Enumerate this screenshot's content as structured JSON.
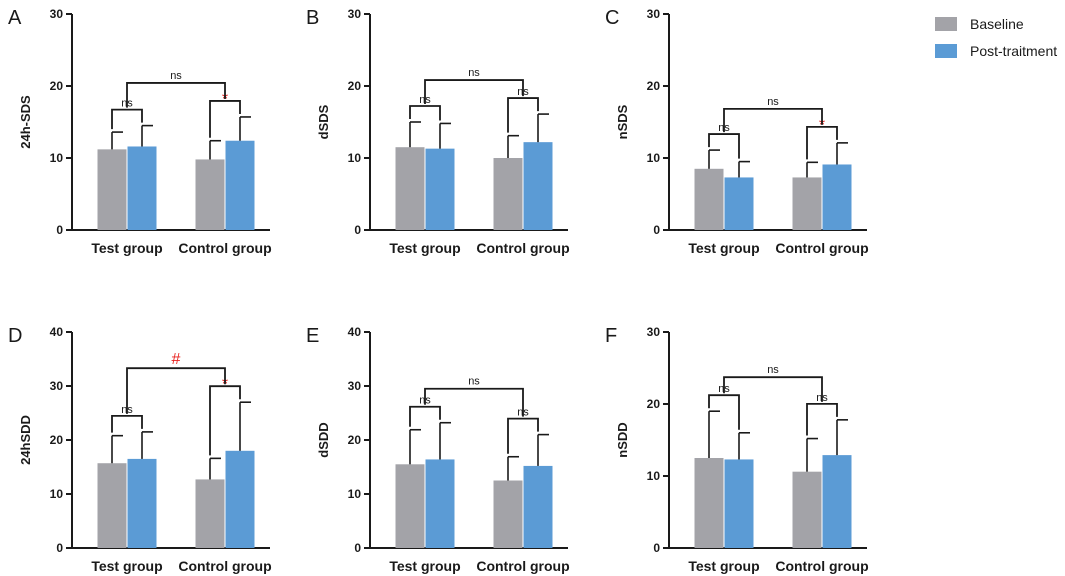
{
  "legend": {
    "items": [
      {
        "label": "Baseline",
        "color": "#a3a3a8"
      },
      {
        "label": "Post-traitment",
        "color": "#5b9bd5"
      }
    ]
  },
  "chart_data": [
    {
      "type": "bar",
      "panel": "A",
      "ylabel": "24h-SDS",
      "ylim": [
        0,
        30
      ],
      "yticks": [
        0,
        10,
        20,
        30
      ],
      "categories": [
        "Test group",
        "Control group"
      ],
      "series": [
        {
          "name": "Baseline",
          "values": [
            11.2,
            9.8
          ],
          "errors": [
            2.4,
            2.6
          ]
        },
        {
          "name": "Post-traitment",
          "values": [
            11.6,
            12.4
          ],
          "errors": [
            2.9,
            3.3
          ]
        }
      ],
      "brackets": [
        {
          "from": [
            0,
            0
          ],
          "to": [
            0,
            1
          ],
          "label": "ns",
          "color": "black",
          "level": 1
        },
        {
          "from": [
            1,
            0
          ],
          "to": [
            1,
            1
          ],
          "label": "*",
          "color": "red",
          "level": 1
        },
        {
          "from": [
            0,
            1
          ],
          "to": [
            1,
            0
          ],
          "label": "ns",
          "color": "black",
          "level": 2
        }
      ]
    },
    {
      "type": "bar",
      "panel": "B",
      "ylabel": "dSDS",
      "ylim": [
        0,
        30
      ],
      "yticks": [
        0,
        10,
        20,
        30
      ],
      "categories": [
        "Test group",
        "Control group"
      ],
      "series": [
        {
          "name": "Baseline",
          "values": [
            11.5,
            10.0
          ],
          "errors": [
            3.5,
            3.1
          ]
        },
        {
          "name": "Post-traitment",
          "values": [
            11.3,
            12.2
          ],
          "errors": [
            3.5,
            3.9
          ]
        }
      ],
      "brackets": [
        {
          "from": [
            0,
            0
          ],
          "to": [
            0,
            1
          ],
          "label": "ns",
          "color": "black",
          "level": 1
        },
        {
          "from": [
            1,
            0
          ],
          "to": [
            1,
            1
          ],
          "label": "ns",
          "color": "black",
          "level": 1
        },
        {
          "from": [
            0,
            1
          ],
          "to": [
            1,
            0
          ],
          "label": "ns",
          "color": "black",
          "level": 2
        }
      ]
    },
    {
      "type": "bar",
      "panel": "C",
      "ylabel": "nSDS",
      "ylim": [
        0,
        30
      ],
      "yticks": [
        0,
        10,
        20,
        30
      ],
      "categories": [
        "Test group",
        "Control group"
      ],
      "series": [
        {
          "name": "Baseline",
          "values": [
            8.5,
            7.3
          ],
          "errors": [
            2.6,
            2.1
          ]
        },
        {
          "name": "Post-traitment",
          "values": [
            7.3,
            9.1
          ],
          "errors": [
            2.2,
            3.0
          ]
        }
      ],
      "brackets": [
        {
          "from": [
            0,
            0
          ],
          "to": [
            0,
            1
          ],
          "label": "ns",
          "color": "black",
          "level": 1
        },
        {
          "from": [
            1,
            0
          ],
          "to": [
            1,
            1
          ],
          "label": "*",
          "color": "red",
          "level": 1
        },
        {
          "from": [
            0,
            1
          ],
          "to": [
            1,
            0
          ],
          "label": "ns",
          "color": "black",
          "level": 2
        }
      ]
    },
    {
      "type": "bar",
      "panel": "D",
      "ylabel": "24hSDD",
      "ylim": [
        0,
        40
      ],
      "yticks": [
        0,
        10,
        20,
        30,
        40
      ],
      "categories": [
        "Test group",
        "Control group"
      ],
      "series": [
        {
          "name": "Baseline",
          "values": [
            15.7,
            12.7
          ],
          "errors": [
            5.1,
            3.9
          ]
        },
        {
          "name": "Post-traitment",
          "values": [
            16.5,
            18.0
          ],
          "errors": [
            5.0,
            9.0
          ]
        }
      ],
      "brackets": [
        {
          "from": [
            0,
            0
          ],
          "to": [
            0,
            1
          ],
          "label": "ns",
          "color": "black",
          "level": 1
        },
        {
          "from": [
            1,
            0
          ],
          "to": [
            1,
            1
          ],
          "label": "*",
          "color": "red",
          "level": 1
        },
        {
          "from": [
            0,
            1
          ],
          "to": [
            1,
            0
          ],
          "label": "#",
          "color": "red",
          "level": 2
        }
      ]
    },
    {
      "type": "bar",
      "panel": "E",
      "ylabel": "dSDD",
      "ylim": [
        0,
        40
      ],
      "yticks": [
        0,
        10,
        20,
        30,
        40
      ],
      "categories": [
        "Test group",
        "Control group"
      ],
      "series": [
        {
          "name": "Baseline",
          "values": [
            15.5,
            12.5
          ],
          "errors": [
            6.4,
            4.4
          ]
        },
        {
          "name": "Post-traitment",
          "values": [
            16.4,
            15.2
          ],
          "errors": [
            6.8,
            5.8
          ]
        }
      ],
      "brackets": [
        {
          "from": [
            0,
            0
          ],
          "to": [
            0,
            1
          ],
          "label": "ns",
          "color": "black",
          "level": 1
        },
        {
          "from": [
            1,
            0
          ],
          "to": [
            1,
            1
          ],
          "label": "ns",
          "color": "black",
          "level": 1
        },
        {
          "from": [
            0,
            1
          ],
          "to": [
            1,
            0
          ],
          "label": "ns",
          "color": "black",
          "level": 2
        }
      ]
    },
    {
      "type": "bar",
      "panel": "F",
      "ylabel": "nSDD",
      "ylim": [
        0,
        30
      ],
      "yticks": [
        0,
        10,
        20,
        30
      ],
      "categories": [
        "Test group",
        "Control group"
      ],
      "series": [
        {
          "name": "Baseline",
          "values": [
            12.5,
            10.6
          ],
          "errors": [
            6.5,
            4.6
          ]
        },
        {
          "name": "Post-traitment",
          "values": [
            12.3,
            12.9
          ],
          "errors": [
            3.7,
            4.9
          ]
        }
      ],
      "brackets": [
        {
          "from": [
            0,
            0
          ],
          "to": [
            0,
            1
          ],
          "label": "ns",
          "color": "black",
          "level": 1
        },
        {
          "from": [
            1,
            0
          ],
          "to": [
            1,
            1
          ],
          "label": "ns",
          "color": "black",
          "level": 1
        },
        {
          "from": [
            0,
            1
          ],
          "to": [
            1,
            0
          ],
          "label": "ns",
          "color": "black",
          "level": 2
        }
      ]
    }
  ]
}
